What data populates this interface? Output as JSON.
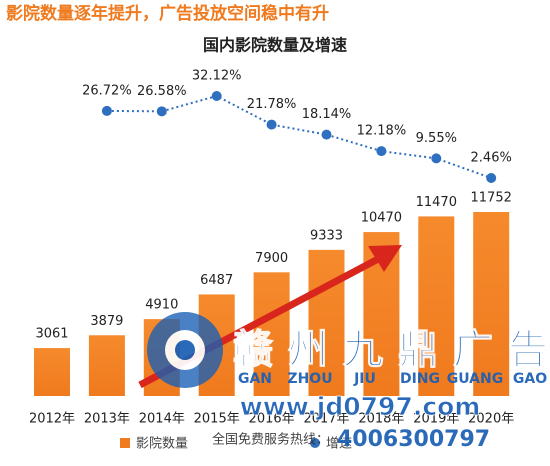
{
  "header": {
    "title": "影院数量逐年提升，广告投放空间稳中有升"
  },
  "chart_data": {
    "type": "bar",
    "title": "国内影院数量及增速",
    "categories": [
      "2012年",
      "2013年",
      "2014年",
      "2015年",
      "2016年",
      "2017年",
      "2018年",
      "2019年",
      "2020年"
    ],
    "series": [
      {
        "name": "影院数量",
        "type": "bar",
        "color": "#f07a1e",
        "values": [
          3061,
          3879,
          4910,
          6487,
          7900,
          9333,
          10470,
          11470,
          11752
        ]
      },
      {
        "name": "增速",
        "type": "line",
        "color": "#2e6fc0",
        "values": [
          null,
          26.72,
          26.58,
          32.12,
          21.78,
          18.14,
          12.18,
          9.55,
          2.46
        ],
        "value_labels": [
          null,
          "26.72%",
          "26.58%",
          "32.12%",
          "21.78%",
          "18.14%",
          "12.18%",
          "9.55%",
          "2.46%"
        ]
      }
    ]
  },
  "watermark": {
    "brand_chars": [
      "赣",
      "州",
      "九",
      "鼎",
      "广",
      "告"
    ],
    "pinyin": [
      "GAN",
      "ZHOU",
      "JIU",
      "DING",
      "GUANG",
      "GAO"
    ],
    "url": "www.jd0797.com",
    "hotline_label": "全国免费服务热线：",
    "hotline": "4006300797"
  }
}
